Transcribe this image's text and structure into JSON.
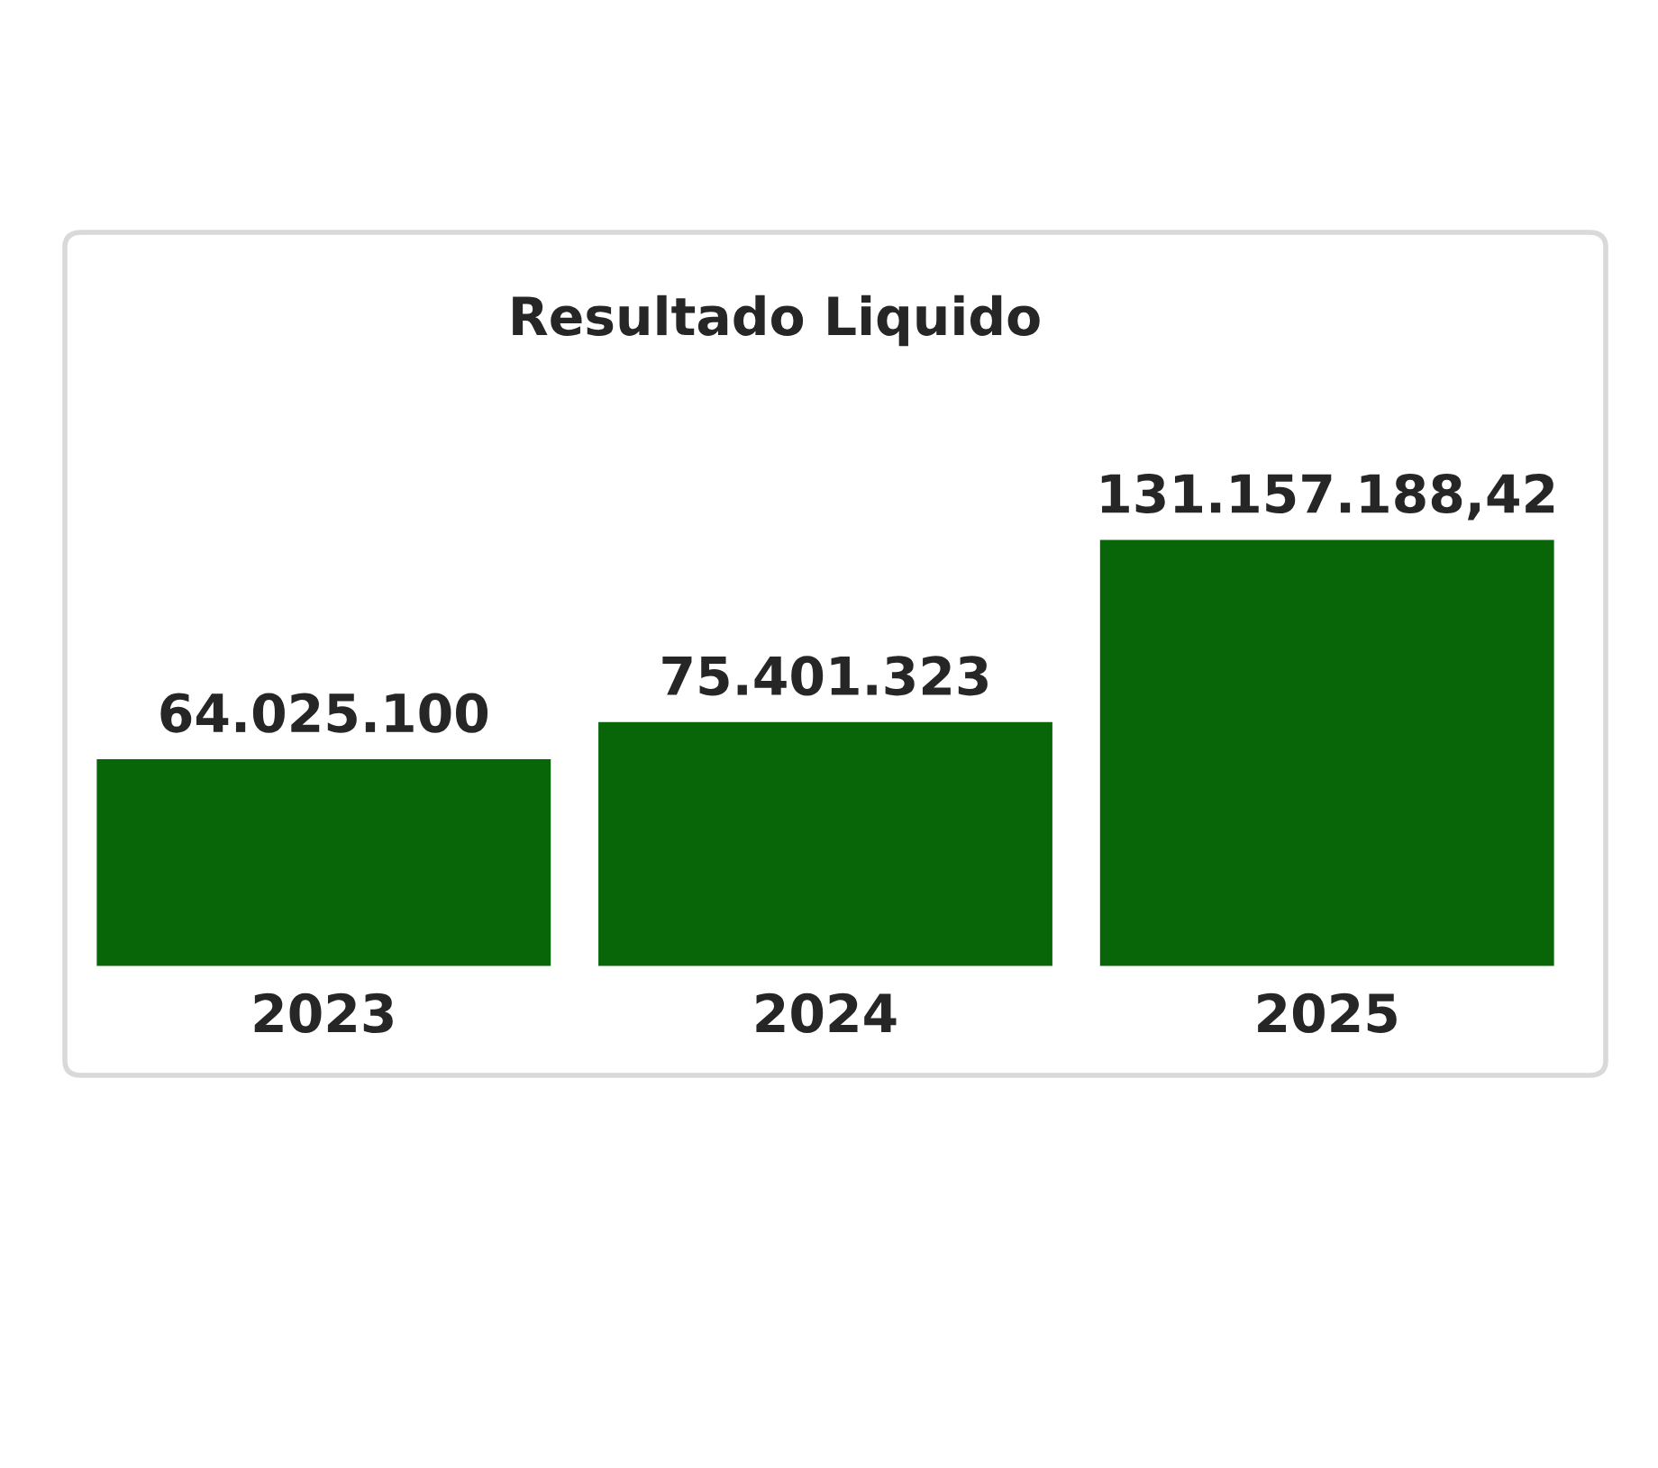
{
  "chart_data": {
    "type": "bar",
    "title": "Resultado Liquido",
    "categories": [
      "2023",
      "2024",
      "2025"
    ],
    "values": [
      64025100,
      75401323,
      131157188.42
    ],
    "value_labels": [
      "64.025.100",
      "75.401.323",
      "131.157.188,42"
    ],
    "color": "#086608",
    "grid": false,
    "legend": false
  }
}
